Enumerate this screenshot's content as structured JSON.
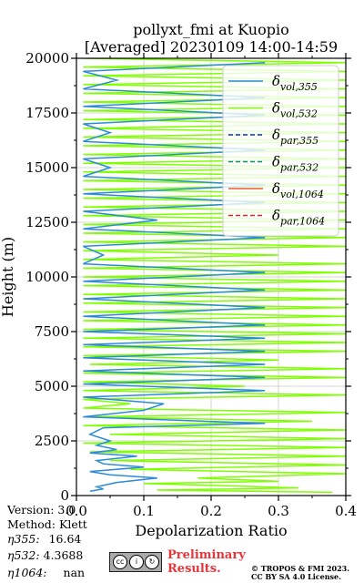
{
  "chart_data": {
    "type": "line",
    "title": "pollyxt_fmi at Kuopio",
    "subtitle": "[Averaged] 20230109 14:00-14:59",
    "xlabel": "Depolarization Ratio",
    "ylabel": "Height (m)",
    "xlim": [
      0,
      0.4
    ],
    "ylim": [
      0,
      20000
    ],
    "xticks": [
      "0.0",
      "0.1",
      "0.2",
      "0.3",
      "0.4"
    ],
    "yticks": [
      "0",
      "2500",
      "5000",
      "7500",
      "10000",
      "12500",
      "15000",
      "17500",
      "20000"
    ],
    "grid": true,
    "legend_position": "top-right",
    "series": [
      {
        "name": "δvol,355",
        "label_main": "δ",
        "label_sub": "vol,355",
        "color": "#2d8bd6",
        "dash": "solid",
        "points": [
          [
            0.02,
            200
          ],
          [
            0.04,
            300
          ],
          [
            0.03,
            400
          ],
          [
            0.06,
            600
          ],
          [
            0.12,
            800
          ],
          [
            0.05,
            950
          ],
          [
            0.02,
            1100
          ],
          [
            0.1,
            1300
          ],
          [
            0.04,
            1450
          ],
          [
            0.03,
            1600
          ],
          [
            0.09,
            1800
          ],
          [
            0.02,
            1950
          ],
          [
            0.06,
            2100
          ],
          [
            0.03,
            2300
          ],
          [
            0.05,
            2500
          ],
          [
            0.02,
            2800
          ],
          [
            0.04,
            3100
          ],
          [
            0.28,
            3300
          ],
          [
            0.01,
            3600
          ],
          [
            0.1,
            3900
          ],
          [
            0.13,
            4200
          ],
          [
            0.01,
            4500
          ],
          [
            0.28,
            4800
          ],
          [
            0.01,
            5100
          ],
          [
            0.28,
            5400
          ],
          [
            0.01,
            5700
          ],
          [
            0.28,
            6000
          ],
          [
            0.01,
            6300
          ],
          [
            0.28,
            6600
          ],
          [
            0.01,
            6900
          ],
          [
            0.28,
            7200
          ],
          [
            0.01,
            7500
          ],
          [
            0.28,
            7800
          ],
          [
            0.01,
            8200
          ],
          [
            0.28,
            8600
          ],
          [
            0.01,
            9000
          ],
          [
            0.28,
            9400
          ],
          [
            0.01,
            9800
          ],
          [
            0.28,
            10200
          ],
          [
            0.01,
            10600
          ],
          [
            0.04,
            11000
          ],
          [
            0.01,
            11400
          ],
          [
            0.28,
            11800
          ],
          [
            0.01,
            12200
          ],
          [
            0.12,
            12600
          ],
          [
            0.01,
            13000
          ],
          [
            0.28,
            13400
          ],
          [
            0.01,
            13800
          ],
          [
            0.28,
            14200
          ],
          [
            0.01,
            14600
          ],
          [
            0.05,
            15000
          ],
          [
            0.01,
            15400
          ],
          [
            0.28,
            15800
          ],
          [
            0.01,
            16200
          ],
          [
            0.05,
            16600
          ],
          [
            0.01,
            17000
          ],
          [
            0.28,
            17400
          ],
          [
            0.01,
            17800
          ],
          [
            0.28,
            18200
          ],
          [
            0.01,
            18600
          ],
          [
            0.06,
            19000
          ],
          [
            0.01,
            19400
          ],
          [
            0.28,
            19800
          ]
        ]
      },
      {
        "name": "δvol,532",
        "label_main": "δ",
        "label_sub": "vol,532",
        "color": "#7fff00",
        "dash": "solid",
        "points": [
          [
            0.38,
            150
          ],
          [
            0.12,
            250
          ],
          [
            0.33,
            350
          ],
          [
            0.22,
            450
          ],
          [
            0.1,
            550
          ],
          [
            0.3,
            650
          ],
          [
            0.18,
            800
          ],
          [
            0.4,
            1000
          ],
          [
            0.08,
            1200
          ],
          [
            0.4,
            1400
          ],
          [
            0.05,
            1600
          ],
          [
            0.4,
            1800
          ],
          [
            0.02,
            2000
          ],
          [
            0.4,
            2200
          ],
          [
            0.01,
            2400
          ],
          [
            0.4,
            2600
          ],
          [
            0.05,
            2800
          ],
          [
            0.4,
            3000
          ],
          [
            0.01,
            3200
          ],
          [
            0.35,
            3400
          ],
          [
            0.02,
            3600
          ],
          [
            0.4,
            3800
          ],
          [
            0.01,
            4000
          ],
          [
            0.08,
            4200
          ],
          [
            0.01,
            4400
          ],
          [
            0.4,
            4600
          ],
          [
            0.01,
            4800
          ],
          [
            0.25,
            5000
          ],
          [
            0.01,
            5200
          ],
          [
            0.4,
            5400
          ],
          [
            0.01,
            5600
          ],
          [
            0.4,
            5800
          ],
          [
            0.02,
            6000
          ],
          [
            0.3,
            6200
          ],
          [
            0.01,
            6400
          ],
          [
            0.4,
            6600
          ],
          [
            0.01,
            6800
          ],
          [
            0.4,
            7000
          ],
          [
            0.01,
            7200
          ],
          [
            0.4,
            7400
          ],
          [
            0.01,
            7600
          ],
          [
            0.4,
            7800
          ],
          [
            0.01,
            8000
          ],
          [
            0.4,
            8200
          ],
          [
            0.01,
            8400
          ],
          [
            0.4,
            8600
          ],
          [
            0.01,
            8800
          ],
          [
            0.4,
            9000
          ],
          [
            0.01,
            9200
          ],
          [
            0.4,
            9400
          ],
          [
            0.01,
            9600
          ],
          [
            0.4,
            9800
          ],
          [
            0.01,
            10000
          ],
          [
            0.4,
            10200
          ],
          [
            0.01,
            10400
          ],
          [
            0.4,
            10600
          ],
          [
            0.01,
            10800
          ],
          [
            0.3,
            11000
          ],
          [
            0.01,
            11200
          ],
          [
            0.4,
            11400
          ],
          [
            0.01,
            11600
          ],
          [
            0.4,
            11800
          ],
          [
            0.01,
            12000
          ],
          [
            0.4,
            12200
          ],
          [
            0.01,
            12400
          ],
          [
            0.4,
            12600
          ],
          [
            0.01,
            12800
          ],
          [
            0.4,
            13000
          ],
          [
            0.01,
            13200
          ],
          [
            0.4,
            13400
          ],
          [
            0.01,
            13600
          ],
          [
            0.4,
            13800
          ],
          [
            0.01,
            14000
          ],
          [
            0.4,
            14200
          ],
          [
            0.01,
            14400
          ],
          [
            0.4,
            14600
          ],
          [
            0.01,
            14800
          ],
          [
            0.4,
            15000
          ],
          [
            0.01,
            15200
          ],
          [
            0.4,
            15400
          ],
          [
            0.01,
            15600
          ],
          [
            0.4,
            15800
          ],
          [
            0.01,
            16000
          ],
          [
            0.4,
            16200
          ],
          [
            0.01,
            16400
          ],
          [
            0.4,
            16600
          ],
          [
            0.01,
            16800
          ],
          [
            0.4,
            17000
          ],
          [
            0.01,
            17200
          ],
          [
            0.4,
            17400
          ],
          [
            0.01,
            17600
          ],
          [
            0.4,
            17800
          ],
          [
            0.01,
            18000
          ],
          [
            0.4,
            18200
          ],
          [
            0.01,
            18400
          ],
          [
            0.4,
            18600
          ],
          [
            0.01,
            18800
          ],
          [
            0.4,
            19000
          ],
          [
            0.01,
            19200
          ],
          [
            0.4,
            19400
          ],
          [
            0.01,
            19600
          ],
          [
            0.4,
            19800
          ],
          [
            0.01,
            20000
          ]
        ]
      },
      {
        "name": "δpar,355",
        "label_main": "δ",
        "label_sub": "par,355",
        "color": "#0b2bc8",
        "dash": "dashed",
        "points": []
      },
      {
        "name": "δpar,532",
        "label_main": "δ",
        "label_sub": "par,532",
        "color": "#138a75",
        "dash": "dashed",
        "points": []
      },
      {
        "name": "δvol,1064",
        "label_main": "δ",
        "label_sub": "vol,1064",
        "color": "#ee5a2a",
        "dash": "solid",
        "points": []
      },
      {
        "name": "δpar,1064",
        "label_main": "δ",
        "label_sub": "par,1064",
        "color": "#d6213a",
        "dash": "dashed",
        "points": []
      }
    ]
  },
  "meta": {
    "version": "Version: 3.0",
    "method": "Method: Klett",
    "eta355_label": "η355:",
    "eta355_value": "16.64",
    "eta532_label": "η532:",
    "eta532_value": "4.3688",
    "eta1064_label": "η1064:",
    "eta1064_value": "nan"
  },
  "footer": {
    "preliminary": "Preliminary\nResults.",
    "copyright": "© TROPOS & FMI 2023.\nCC BY SA 4.0 License.",
    "cc_badge": {
      "cc": "cc",
      "by": "i",
      "sa": "↻"
    }
  }
}
